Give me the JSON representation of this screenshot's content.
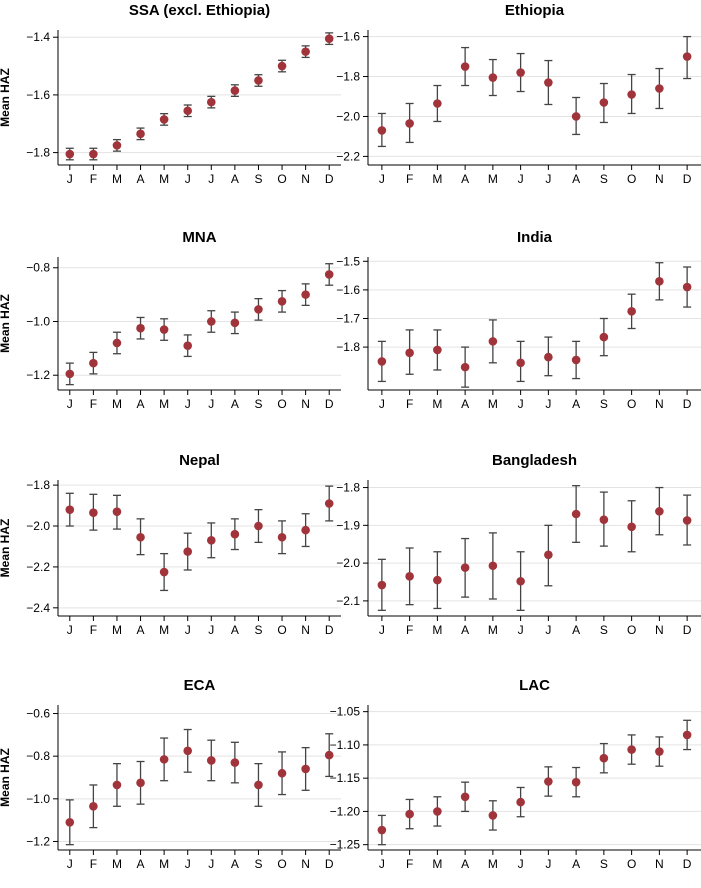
{
  "chart_data": [
    {
      "type": "scatter",
      "title": "SSA (excl. Ethiopia)",
      "ylabel": "Mean HAZ",
      "categories": [
        "J",
        "F",
        "M",
        "A",
        "M",
        "J",
        "J",
        "A",
        "S",
        "O",
        "N",
        "D"
      ],
      "values": [
        -1.805,
        -1.805,
        -1.775,
        -1.735,
        -1.685,
        -1.655,
        -1.625,
        -1.585,
        -1.55,
        -1.5,
        -1.45,
        -1.405
      ],
      "lower": [
        -1.825,
        -1.825,
        -1.795,
        -1.755,
        -1.705,
        -1.675,
        -1.645,
        -1.605,
        -1.57,
        -1.52,
        -1.47,
        -1.425
      ],
      "upper": [
        -1.785,
        -1.785,
        -1.755,
        -1.715,
        -1.665,
        -1.635,
        -1.605,
        -1.565,
        -1.53,
        -1.48,
        -1.43,
        -1.385
      ],
      "yticks": [
        -1.8,
        -1.6,
        -1.4
      ],
      "ytick_labels": [
        "−1.8",
        "−1.6",
        "−1.4"
      ],
      "ylim": [
        -1.843,
        -1.375
      ]
    },
    {
      "type": "scatter",
      "title": "Ethiopia",
      "ylabel": "",
      "categories": [
        "J",
        "F",
        "M",
        "A",
        "M",
        "J",
        "J",
        "A",
        "S",
        "O",
        "N",
        "D"
      ],
      "values": [
        -2.07,
        -2.035,
        -1.935,
        -1.75,
        -1.805,
        -1.78,
        -1.83,
        -2.0,
        -1.93,
        -1.89,
        -1.86,
        -1.7
      ],
      "lower": [
        -2.15,
        -2.13,
        -2.025,
        -1.845,
        -1.895,
        -1.875,
        -1.94,
        -2.09,
        -2.03,
        -1.985,
        -1.96,
        -1.81
      ],
      "upper": [
        -1.985,
        -1.935,
        -1.845,
        -1.655,
        -1.715,
        -1.685,
        -1.72,
        -1.905,
        -1.835,
        -1.79,
        -1.76,
        -1.6
      ],
      "yticks": [
        -2.2,
        -2.0,
        -1.8,
        -1.6
      ],
      "ytick_labels": [
        "−2.2",
        "−2.0",
        "−1.8",
        "−1.6"
      ],
      "ylim": [
        -2.243,
        -1.567
      ]
    },
    {
      "type": "scatter",
      "title": "MNA",
      "ylabel": "Mean HAZ",
      "categories": [
        "J",
        "F",
        "M",
        "A",
        "M",
        "J",
        "J",
        "A",
        "S",
        "O",
        "N",
        "D"
      ],
      "values": [
        -1.195,
        -1.155,
        -1.08,
        -1.025,
        -1.03,
        -1.09,
        -1.0,
        -1.005,
        -0.955,
        -0.925,
        -0.9,
        -0.825
      ],
      "lower": [
        -1.235,
        -1.195,
        -1.12,
        -1.065,
        -1.07,
        -1.13,
        -1.04,
        -1.045,
        -0.995,
        -0.965,
        -0.94,
        -0.865
      ],
      "upper": [
        -1.155,
        -1.115,
        -1.04,
        -0.985,
        -0.99,
        -1.05,
        -0.96,
        -0.965,
        -0.915,
        -0.885,
        -0.86,
        -0.785
      ],
      "yticks": [
        -1.2,
        -1.0,
        -0.8
      ],
      "ytick_labels": [
        "−1.2",
        "−1.0",
        "−0.8"
      ],
      "ylim": [
        -1.255,
        -0.76
      ]
    },
    {
      "type": "scatter",
      "title": "India",
      "ylabel": "",
      "categories": [
        "J",
        "F",
        "M",
        "A",
        "M",
        "J",
        "J",
        "A",
        "S",
        "O",
        "N",
        "D"
      ],
      "values": [
        -1.85,
        -1.82,
        -1.81,
        -1.87,
        -1.78,
        -1.855,
        -1.835,
        -1.845,
        -1.765,
        -1.675,
        -1.57,
        -1.59
      ],
      "lower": [
        -1.92,
        -1.895,
        -1.88,
        -1.94,
        -1.855,
        -1.92,
        -1.9,
        -1.91,
        -1.83,
        -1.735,
        -1.635,
        -1.66
      ],
      "upper": [
        -1.78,
        -1.74,
        -1.74,
        -1.8,
        -1.705,
        -1.78,
        -1.765,
        -1.78,
        -1.7,
        -1.615,
        -1.505,
        -1.52
      ],
      "yticks": [
        -1.8,
        -1.7,
        -1.6,
        -1.5
      ],
      "ytick_labels": [
        "−1.8",
        "−1.7",
        "−1.6",
        "−1.5"
      ],
      "ylim": [
        -1.95,
        -1.485
      ]
    },
    {
      "type": "scatter",
      "title": "Nepal",
      "ylabel": "Mean HAZ",
      "categories": [
        "J",
        "F",
        "M",
        "A",
        "M",
        "J",
        "J",
        "A",
        "S",
        "O",
        "N",
        "D"
      ],
      "values": [
        -1.92,
        -1.935,
        -1.93,
        -2.055,
        -2.225,
        -2.125,
        -2.07,
        -2.04,
        -2.0,
        -2.055,
        -2.02,
        -1.89
      ],
      "lower": [
        -2.0,
        -2.02,
        -2.015,
        -2.14,
        -2.315,
        -2.215,
        -2.155,
        -2.115,
        -2.08,
        -2.135,
        -2.1,
        -1.975
      ],
      "upper": [
        -1.84,
        -1.845,
        -1.85,
        -1.965,
        -2.135,
        -2.035,
        -1.985,
        -1.965,
        -1.92,
        -1.975,
        -1.94,
        -1.805
      ],
      "yticks": [
        -2.4,
        -2.2,
        -2.0,
        -1.8
      ],
      "ytick_labels": [
        "−2.4",
        "−2.2",
        "−2.0",
        "−1.8"
      ],
      "ylim": [
        -2.44,
        -1.775
      ]
    },
    {
      "type": "scatter",
      "title": "Bangladesh",
      "ylabel": "",
      "categories": [
        "J",
        "F",
        "M",
        "A",
        "M",
        "J",
        "J",
        "A",
        "S",
        "O",
        "N",
        "D"
      ],
      "values": [
        -2.058,
        -2.035,
        -2.045,
        -2.012,
        -2.007,
        -2.048,
        -1.978,
        -1.87,
        -1.885,
        -1.904,
        -1.863,
        -1.887
      ],
      "lower": [
        -2.125,
        -2.11,
        -2.12,
        -2.09,
        -2.095,
        -2.125,
        -2.06,
        -1.945,
        -1.955,
        -1.97,
        -1.925,
        -1.952
      ],
      "upper": [
        -1.99,
        -1.96,
        -1.97,
        -1.935,
        -1.92,
        -1.97,
        -1.9,
        -1.795,
        -1.812,
        -1.835,
        -1.8,
        -1.82
      ],
      "yticks": [
        -2.1,
        -2.0,
        -1.9,
        -1.8
      ],
      "ytick_labels": [
        "−2.1",
        "−2.0",
        "−1.9",
        "−1.8"
      ],
      "ylim": [
        -2.14,
        -1.78
      ]
    },
    {
      "type": "scatter",
      "title": "ECA",
      "ylabel": "Mean HAZ",
      "categories": [
        "J",
        "F",
        "M",
        "A",
        "M",
        "J",
        "J",
        "A",
        "S",
        "O",
        "N",
        "D"
      ],
      "values": [
        -1.11,
        -1.035,
        -0.935,
        -0.925,
        -0.815,
        -0.775,
        -0.82,
        -0.83,
        -0.935,
        -0.88,
        -0.86,
        -0.795
      ],
      "lower": [
        -1.215,
        -1.135,
        -1.035,
        -1.025,
        -0.915,
        -0.875,
        -0.915,
        -0.925,
        -1.035,
        -0.98,
        -0.96,
        -0.895
      ],
      "upper": [
        -1.005,
        -0.935,
        -0.835,
        -0.825,
        -0.715,
        -0.675,
        -0.725,
        -0.735,
        -0.835,
        -0.78,
        -0.76,
        -0.695
      ],
      "yticks": [
        -1.2,
        -1.0,
        -0.8,
        -0.6
      ],
      "ytick_labels": [
        "−1.2",
        "−1.0",
        "−0.8",
        "−0.6"
      ],
      "ylim": [
        -1.24,
        -0.56
      ]
    },
    {
      "type": "scatter",
      "title": "LAC",
      "ylabel": "",
      "categories": [
        "J",
        "F",
        "M",
        "A",
        "M",
        "J",
        "J",
        "A",
        "S",
        "O",
        "N",
        "D"
      ],
      "values": [
        -1.228,
        -1.204,
        -1.2,
        -1.178,
        -1.206,
        -1.186,
        -1.155,
        -1.156,
        -1.12,
        -1.107,
        -1.11,
        -1.085
      ],
      "lower": [
        -1.25,
        -1.226,
        -1.222,
        -1.2,
        -1.228,
        -1.208,
        -1.177,
        -1.178,
        -1.142,
        -1.129,
        -1.132,
        -1.107
      ],
      "upper": [
        -1.206,
        -1.182,
        -1.178,
        -1.156,
        -1.184,
        -1.164,
        -1.133,
        -1.134,
        -1.098,
        -1.085,
        -1.088,
        -1.063
      ],
      "yticks": [
        -1.25,
        -1.2,
        -1.15,
        -1.1,
        -1.05
      ],
      "ytick_labels": [
        "−1.25",
        "−1.20",
        "−1.15",
        "−1.10",
        "−1.05"
      ],
      "ylim": [
        -1.258,
        -1.04
      ]
    }
  ],
  "colors": {
    "point": "#a0343a",
    "errorbar": "#444444",
    "grid": "#e3e3e3",
    "axis": "#000000"
  }
}
